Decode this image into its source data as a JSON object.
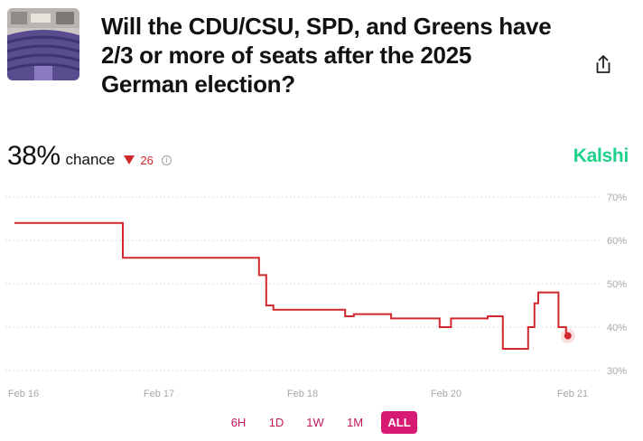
{
  "header": {
    "title": "Will the CDU/CSU, SPD, and Greens have 2/3 or more of seats after the 2025 German election?",
    "thumbnail_icon": "parliament-photo",
    "share_icon": "share-icon"
  },
  "stat": {
    "probability": "38%",
    "chance_label": "chance",
    "delta": "26",
    "delta_direction": "down",
    "delta_color": "#d0282d"
  },
  "brand": {
    "name": "Kalshi",
    "color": "#1fd28a"
  },
  "range_buttons": [
    "6H",
    "1D",
    "1W",
    "1M",
    "ALL"
  ],
  "active_range": "ALL",
  "chart_data": {
    "type": "line",
    "title": "",
    "xlabel": "",
    "ylabel": "",
    "x_ticks": [
      "Feb 16",
      "Feb 17",
      "Feb 18",
      "Feb 20",
      "Feb 21"
    ],
    "y_ticks": [
      "70%",
      "60%",
      "50%",
      "40%",
      "30%"
    ],
    "ylim": [
      27,
      71
    ],
    "grid": true,
    "line_color": "#d0282d",
    "series": [
      {
        "step": true,
        "points": [
          [
            0,
            64
          ],
          [
            0.8,
            64
          ],
          [
            0.8,
            56
          ],
          [
            1.76,
            56
          ],
          [
            1.76,
            52
          ],
          [
            1.81,
            52
          ],
          [
            1.81,
            45
          ],
          [
            1.86,
            45
          ],
          [
            1.86,
            44
          ],
          [
            2.36,
            44
          ],
          [
            2.36,
            42.5
          ],
          [
            2.42,
            42.5
          ],
          [
            2.42,
            43
          ],
          [
            2.68,
            43
          ],
          [
            2.68,
            42
          ],
          [
            3.02,
            42
          ],
          [
            3.02,
            40
          ],
          [
            3.11,
            40
          ],
          [
            3.11,
            42
          ],
          [
            3.4,
            42
          ],
          [
            3.4,
            42.5
          ],
          [
            3.52,
            42.5
          ],
          [
            3.52,
            35
          ],
          [
            3.72,
            35
          ],
          [
            3.72,
            40
          ],
          [
            3.77,
            40
          ],
          [
            3.77,
            45.5
          ],
          [
            3.8,
            45.5
          ],
          [
            3.8,
            48
          ],
          [
            3.96,
            48
          ],
          [
            3.96,
            40
          ],
          [
            4.02,
            40
          ],
          [
            4.02,
            38
          ]
        ]
      }
    ],
    "last_point": {
      "x": 4.02,
      "y": 38
    }
  }
}
